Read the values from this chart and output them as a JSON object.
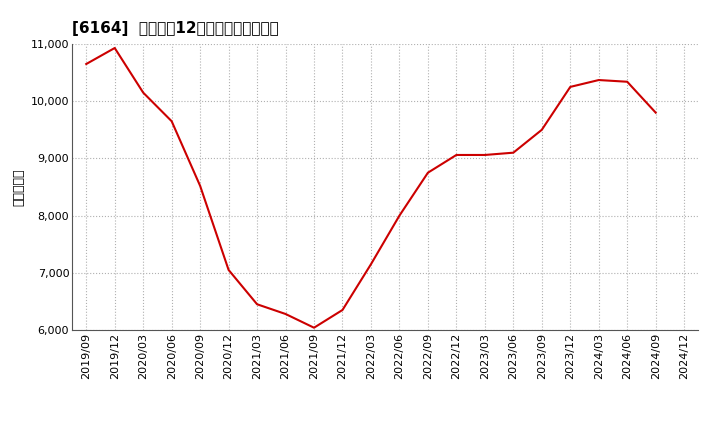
{
  "title": "[6164]  売上高の12か月移動合計の推移",
  "ylabel": "（百万円）",
  "line_color": "#cc0000",
  "background_color": "#ffffff",
  "plot_bg_color": "#ffffff",
  "grid_color": "#b0b0b0",
  "ylim": [
    6000,
    11000
  ],
  "yticks": [
    6000,
    7000,
    8000,
    9000,
    10000,
    11000
  ],
  "dates": [
    "2019/09",
    "2019/12",
    "2020/03",
    "2020/06",
    "2020/09",
    "2020/12",
    "2021/03",
    "2021/06",
    "2021/09",
    "2021/12",
    "2022/03",
    "2022/06",
    "2022/09",
    "2022/12",
    "2023/03",
    "2023/06",
    "2023/09",
    "2023/12",
    "2024/03",
    "2024/06",
    "2024/09",
    "2024/12"
  ],
  "values": [
    10650,
    10930,
    10150,
    9650,
    8520,
    7050,
    6450,
    6280,
    6040,
    6350,
    7150,
    8000,
    8750,
    9060,
    9060,
    9100,
    9500,
    10250,
    10370,
    10340,
    9800,
    null
  ],
  "title_fontsize": 11,
  "ylabel_fontsize": 9,
  "tick_fontsize": 8
}
